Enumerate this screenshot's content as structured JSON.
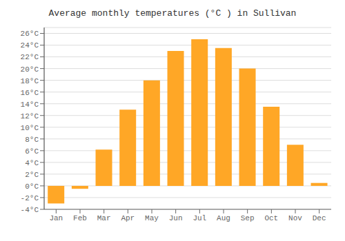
{
  "chart_data": {
    "type": "bar",
    "title": "Average monthly temperatures (°C ) in Sullivan",
    "categories": [
      "Jan",
      "Feb",
      "Mar",
      "Apr",
      "May",
      "Jun",
      "Jul",
      "Aug",
      "Sep",
      "Oct",
      "Nov",
      "Dec"
    ],
    "values": [
      -3,
      -0.5,
      6.2,
      13,
      18,
      23,
      25,
      23.5,
      20,
      13.5,
      7,
      0.5
    ],
    "color": "#FFA726",
    "ylim": [
      -4,
      27
    ],
    "yticks": [
      {
        "value": -4,
        "label": "-4°C"
      },
      {
        "value": -2,
        "label": "-2°C"
      },
      {
        "value": 0,
        "label": "0°C"
      },
      {
        "value": 2,
        "label": "2°C"
      },
      {
        "value": 4,
        "label": "4°C"
      },
      {
        "value": 6,
        "label": "6°C"
      },
      {
        "value": 8,
        "label": "8°C"
      },
      {
        "value": 10,
        "label": "10°C"
      },
      {
        "value": 12,
        "label": "12°C"
      },
      {
        "value": 14,
        "label": "14°C"
      },
      {
        "value": 16,
        "label": "16°C"
      },
      {
        "value": 18,
        "label": "18°C"
      },
      {
        "value": 20,
        "label": "20°C"
      },
      {
        "value": 22,
        "label": "22°C"
      },
      {
        "value": 24,
        "label": "24°C"
      },
      {
        "value": 26,
        "label": "26°C"
      }
    ],
    "grid": true
  }
}
